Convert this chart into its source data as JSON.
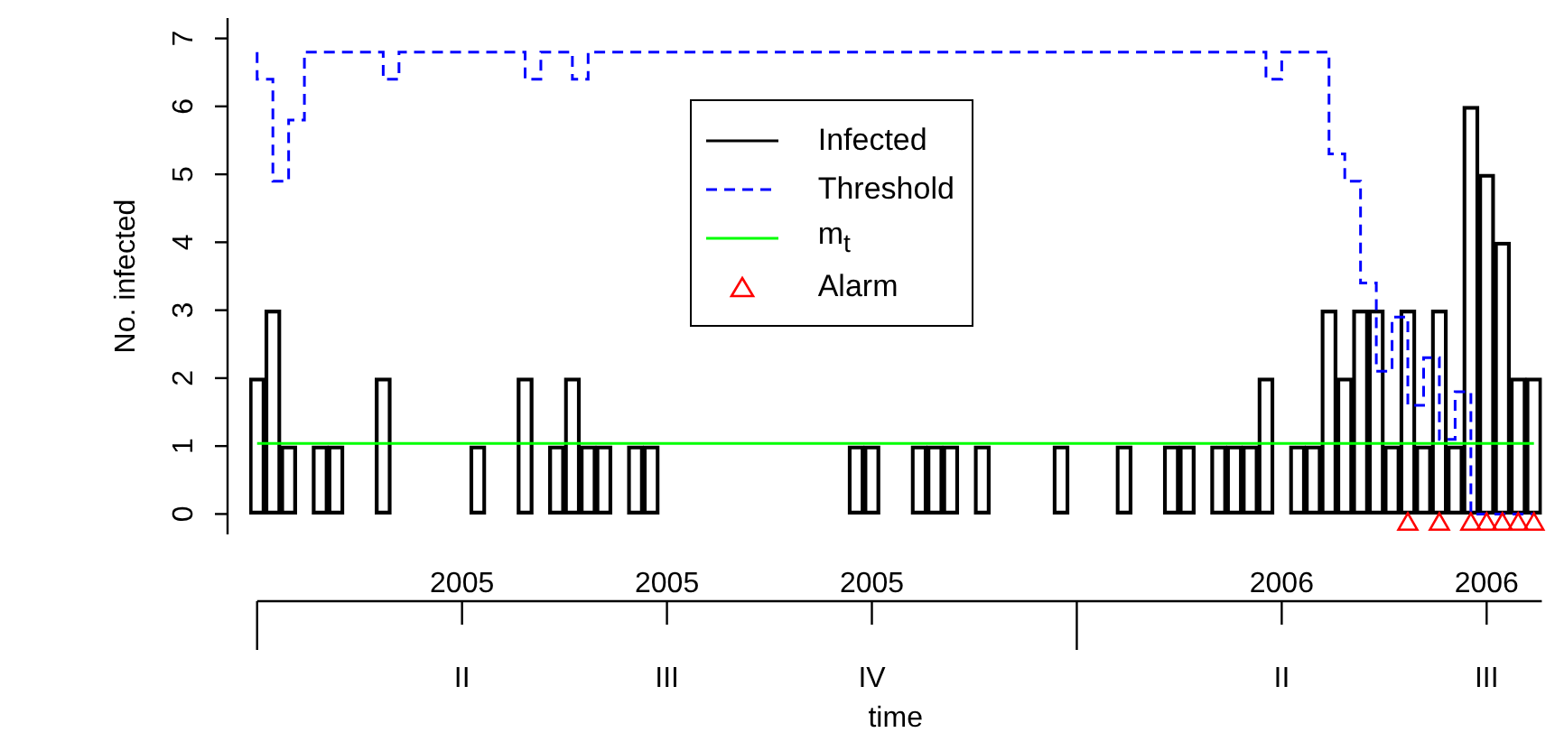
{
  "chart_data": {
    "type": "bar",
    "xlabel": "time",
    "ylabel": "No. infected",
    "categories": [
      null,
      null,
      null,
      null,
      null,
      null,
      null,
      null,
      null,
      null,
      null,
      null,
      null,
      "II",
      null,
      null,
      null,
      null,
      null,
      null,
      null,
      null,
      null,
      null,
      null,
      null,
      "III",
      null,
      null,
      null,
      null,
      null,
      null,
      null,
      null,
      null,
      null,
      null,
      null,
      "IV",
      null,
      null,
      null,
      null,
      null,
      null,
      null,
      null,
      null,
      null,
      null,
      null,
      null,
      null,
      null,
      null,
      null,
      null,
      null,
      null,
      null,
      null,
      null,
      null,
      null,
      "II",
      null,
      null,
      null,
      null,
      null,
      null,
      null,
      null,
      null,
      null,
      null,
      null,
      "III",
      null,
      null,
      null
    ],
    "series": [
      {
        "name": "Infected",
        "color": "#000000",
        "values": [
          2,
          3,
          1,
          0,
          1,
          1,
          0,
          0,
          2,
          0,
          0,
          0,
          0,
          0,
          1,
          0,
          0,
          2,
          0,
          1,
          2,
          1,
          1,
          0,
          1,
          1,
          0,
          0,
          0,
          0,
          0,
          0,
          0,
          0,
          0,
          0,
          0,
          0,
          1,
          1,
          0,
          0,
          1,
          1,
          1,
          0,
          1,
          0,
          0,
          0,
          0,
          1,
          0,
          0,
          0,
          1,
          0,
          0,
          1,
          1,
          0,
          1,
          1,
          1,
          2,
          0,
          1,
          1,
          3,
          2,
          3,
          3,
          1,
          3,
          1,
          3,
          1,
          6,
          5,
          4,
          2,
          2
        ]
      },
      {
        "name": "Threshold",
        "type": "step",
        "color": "#0000ff",
        "line_style": "dashed",
        "values": [
          6.8,
          6.4,
          4.9,
          5.8,
          6.8,
          6.8,
          6.8,
          6.8,
          6.8,
          6.4,
          6.8,
          6.8,
          6.8,
          6.8,
          6.8,
          6.8,
          6.8,
          6.8,
          6.4,
          6.8,
          6.8,
          6.4,
          6.8,
          6.8,
          6.8,
          6.8,
          6.8,
          6.8,
          6.8,
          6.8,
          6.8,
          6.8,
          6.8,
          6.8,
          6.8,
          6.8,
          6.8,
          6.8,
          6.8,
          6.8,
          6.8,
          6.8,
          6.8,
          6.8,
          6.8,
          6.8,
          6.8,
          6.8,
          6.8,
          6.8,
          6.8,
          6.8,
          6.8,
          6.8,
          6.8,
          6.8,
          6.8,
          6.8,
          6.8,
          6.8,
          6.8,
          6.8,
          6.8,
          6.8,
          6.8,
          6.4,
          6.8,
          6.8,
          6.8,
          5.3,
          4.9,
          3.4,
          2.1,
          2.9,
          1.6,
          2.3,
          1.1,
          1.8,
          0,
          0,
          0,
          0
        ]
      },
      {
        "name": "m$_{t}$",
        "type": "line",
        "color": "#00ff00",
        "values": [
          1.04,
          1.04,
          1.04,
          1.04,
          1.04,
          1.04,
          1.04,
          1.04,
          1.04,
          1.04,
          1.04,
          1.04,
          1.04,
          1.04,
          1.04,
          1.04,
          1.04,
          1.04,
          1.04,
          1.04,
          1.04,
          1.04,
          1.04,
          1.04,
          1.04,
          1.04,
          1.04,
          1.04,
          1.04,
          1.04,
          1.04,
          1.04,
          1.04,
          1.04,
          1.04,
          1.04,
          1.04,
          1.04,
          1.04,
          1.04,
          1.04,
          1.04,
          1.04,
          1.04,
          1.04,
          1.04,
          1.04,
          1.04,
          1.04,
          1.04,
          1.04,
          1.04,
          1.04,
          1.04,
          1.04,
          1.04,
          1.04,
          1.04,
          1.04,
          1.04,
          1.04,
          1.04,
          1.04,
          1.04,
          1.04,
          1.04,
          1.04,
          1.04,
          1.04,
          1.04,
          1.04,
          1.04,
          1.04,
          1.04,
          1.04,
          1.04,
          1.04,
          1.04,
          1.04,
          1.04,
          1.04,
          1.04
        ]
      },
      {
        "name": "Alarm",
        "type": "scatter",
        "color": "#ff0000",
        "marker": "triangle",
        "values": [
          null,
          null,
          null,
          null,
          null,
          null,
          null,
          null,
          null,
          null,
          null,
          null,
          null,
          null,
          null,
          null,
          null,
          null,
          null,
          null,
          null,
          null,
          null,
          null,
          null,
          null,
          null,
          null,
          null,
          null,
          null,
          null,
          null,
          null,
          null,
          null,
          null,
          null,
          null,
          null,
          null,
          null,
          null,
          null,
          null,
          null,
          null,
          null,
          null,
          null,
          null,
          null,
          null,
          null,
          null,
          null,
          null,
          null,
          null,
          null,
          null,
          null,
          null,
          null,
          null,
          null,
          null,
          null,
          null,
          null,
          null,
          null,
          null,
          -0.15,
          null,
          -0.15,
          null,
          -0.15,
          -0.15,
          -0.15,
          -0.15,
          -0.15
        ]
      }
    ],
    "annotations": [
      "2005",
      "2005",
      "2005",
      "2006",
      "2006"
    ],
    "ylim": [
      -0.3,
      7.3
    ],
    "yticks": [
      0,
      1,
      2,
      3,
      4,
      5,
      6,
      7
    ],
    "legend": "top"
  }
}
